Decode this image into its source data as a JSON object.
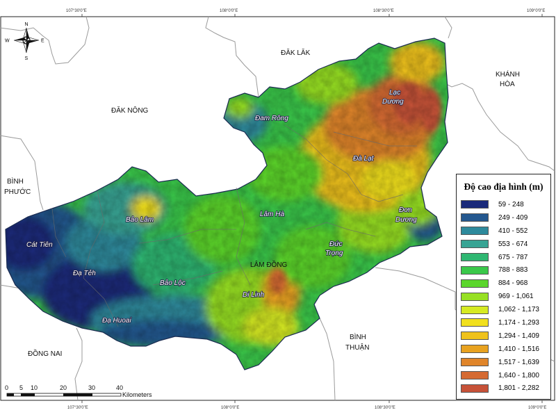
{
  "grid_labels": {
    "top": [
      "107°30'0\"E",
      "108°0'0\"E",
      "108°30'0\"E",
      "109°0'0\"E"
    ],
    "bottom": [
      "107°30'0\"E",
      "108°0'0\"E",
      "108°30'0\"E",
      "109°0'0\"E"
    ]
  },
  "compass": {
    "n": "N",
    "s": "S",
    "e": "E",
    "w": "W"
  },
  "neighbors": {
    "dak_lak": "ĐĂK LĂK",
    "dak_nong": "ĐĂK NÔNG",
    "khanh_hoa_1": "KHÁNH",
    "khanh_hoa_2": "HÒA",
    "binh_phuoc_1": "BÌNH",
    "binh_phuoc_2": "PHƯỚC",
    "dong_nai": "ĐỒNG NAI",
    "binh_thuan_1": "BÌNH",
    "binh_thuan_2": "THUẬN"
  },
  "province": "LÂM ĐỒNG",
  "districts": {
    "lac_duong_1": "Lạc",
    "lac_duong_2": "Dương",
    "dam_rong": "Đam Rông",
    "da_lat": "Đà Lạt",
    "don_duong_1": "Đơn",
    "don_duong_2": "Dương",
    "lam_ha": "Lâm Hà",
    "bao_lam": "Bảo Lâm",
    "cat_tien": "Cát Tiên",
    "duc_trong_1": "Đức",
    "duc_trong_2": "Trọng",
    "da_teh": "Đạ Tẻh",
    "bao_loc": "Bảo Lộc",
    "di_linh": "Di Linh",
    "da_huoai": "Đạ Huoai"
  },
  "scalebar": {
    "ticks": [
      "0",
      "5",
      "10",
      "20",
      "30",
      "40"
    ],
    "unit": "Kilometers"
  },
  "legend": {
    "title": "Độ cao địa hình (m)",
    "items": [
      {
        "label": "59 - 248",
        "color": "#1b2a7a"
      },
      {
        "label": "249 - 409",
        "color": "#24588f"
      },
      {
        "label": "410 - 552",
        "color": "#2e8a9c"
      },
      {
        "label": "553 - 674",
        "color": "#38a494"
      },
      {
        "label": "675 - 787",
        "color": "#2fb772"
      },
      {
        "label": "788 - 883",
        "color": "#3ac84a"
      },
      {
        "label": "884 - 968",
        "color": "#5bd62c"
      },
      {
        "label": "969 - 1,061",
        "color": "#97e024"
      },
      {
        "label": "1,062 - 1,173",
        "color": "#d6ea22"
      },
      {
        "label": "1,174 - 1,293",
        "color": "#f1e01d"
      },
      {
        "label": "1,294 - 1,409",
        "color": "#efc21c"
      },
      {
        "label": "1,410 - 1,516",
        "color": "#e8a220"
      },
      {
        "label": "1,517 - 1,639",
        "color": "#e0852a"
      },
      {
        "label": "1,640 - 1,800",
        "color": "#d56a32"
      },
      {
        "label": "1,801 - 2,282",
        "color": "#c75238"
      }
    ]
  }
}
